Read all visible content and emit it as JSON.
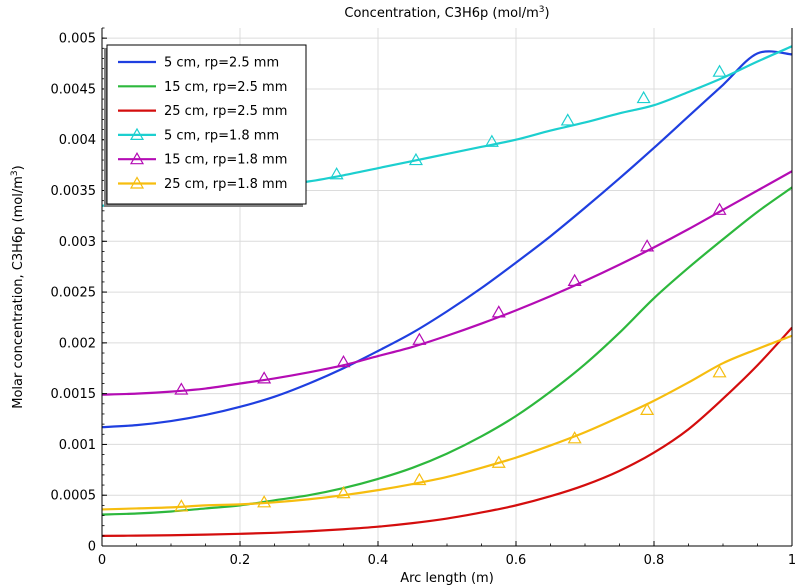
{
  "chart_data": {
    "type": "line",
    "title": "Concentration, C3H6p (mol/m",
    "title_sup": "3",
    "title_end": ")",
    "xlabel": "Arc length (m)",
    "ylabel": "Molar concentration, C3H6p (mol/m",
    "ylabel_sup": "3",
    "ylabel_end": ")",
    "xlim": [
      0,
      1
    ],
    "ylim": [
      0,
      0.0051
    ],
    "x_ticks": [
      0,
      0.2,
      0.4,
      0.6,
      0.8,
      1
    ],
    "x_tick_labels": [
      "0",
      "0.2",
      "0.4",
      "0.6",
      "0.8",
      "1"
    ],
    "y_ticks": [
      0,
      0.0005,
      0.001,
      0.0015,
      0.002,
      0.0025,
      0.003,
      0.0035,
      0.004,
      0.0045,
      0.005
    ],
    "y_tick_labels": [
      "0",
      "0.0005",
      "0.001",
      "0.0015",
      "0.002",
      "0.0025",
      "0.003",
      "0.0035",
      "0.004",
      "0.0045",
      "0.005"
    ],
    "grid": true,
    "legend_position": "top-left",
    "series": [
      {
        "name": "5 cm, rp=2.5 mm",
        "color": "#1f3fe0",
        "marker": "none",
        "x": [
          0,
          0.05,
          0.1,
          0.15,
          0.2,
          0.25,
          0.3,
          0.35,
          0.4,
          0.45,
          0.5,
          0.55,
          0.6,
          0.65,
          0.7,
          0.75,
          0.8,
          0.85,
          0.9,
          0.95,
          1
        ],
        "values": [
          0.00117,
          0.00119,
          0.00123,
          0.00129,
          0.00137,
          0.00147,
          0.0016,
          0.00175,
          0.00192,
          0.0021,
          0.00231,
          0.00254,
          0.00279,
          0.00305,
          0.00333,
          0.00362,
          0.00392,
          0.00423,
          0.00454,
          0.00485,
          0.00484
        ]
      },
      {
        "name": "15 cm, rp=2.5 mm",
        "color": "#2db83d",
        "marker": "none",
        "x": [
          0,
          0.05,
          0.1,
          0.15,
          0.2,
          0.25,
          0.3,
          0.35,
          0.4,
          0.45,
          0.5,
          0.55,
          0.6,
          0.65,
          0.7,
          0.75,
          0.8,
          0.85,
          0.9,
          0.95,
          1
        ],
        "values": [
          0.00031,
          0.00032,
          0.00034,
          0.00037,
          0.0004,
          0.00045,
          0.0005,
          0.00057,
          0.00066,
          0.00077,
          0.00091,
          0.00108,
          0.00128,
          0.00152,
          0.00179,
          0.0021,
          0.00244,
          0.00274,
          0.00302,
          0.00329,
          0.00353
        ]
      },
      {
        "name": "25 cm, rp=2.5 mm",
        "color": "#d40d0d",
        "marker": "none",
        "x": [
          0,
          0.05,
          0.1,
          0.15,
          0.2,
          0.25,
          0.3,
          0.35,
          0.4,
          0.45,
          0.5,
          0.55,
          0.6,
          0.65,
          0.7,
          0.75,
          0.8,
          0.85,
          0.9,
          0.95,
          1
        ],
        "values": [
          0.0001,
          0.000102,
          0.000106,
          0.000112,
          0.00012,
          0.00013,
          0.000145,
          0.000165,
          0.00019,
          0.000225,
          0.00027,
          0.00033,
          0.0004,
          0.00049,
          0.0006,
          0.00074,
          0.00092,
          0.00115,
          0.00145,
          0.00178,
          0.00215
        ]
      },
      {
        "name": "5 cm, rp=1.8 mm",
        "color": "#1ccfcf",
        "marker": "triangle",
        "x": [
          0,
          0.05,
          0.1,
          0.15,
          0.2,
          0.25,
          0.3,
          0.35,
          0.4,
          0.45,
          0.5,
          0.55,
          0.6,
          0.65,
          0.7,
          0.75,
          0.8,
          0.85,
          0.9,
          0.95,
          1
        ],
        "values": [
          0.00335,
          0.00337,
          0.00341,
          0.00346,
          0.00352,
          0.00355,
          0.00359,
          0.00365,
          0.00372,
          0.00379,
          0.00386,
          0.00393,
          0.004,
          0.00409,
          0.00417,
          0.00426,
          0.00434,
          0.00447,
          0.00461,
          0.00477,
          0.00492
        ],
        "markers_x": [
          0.34,
          0.455,
          0.565,
          0.675,
          0.785,
          0.895
        ],
        "markers_y": [
          0.00366,
          0.0038,
          0.00398,
          0.00419,
          0.00441,
          0.00467
        ]
      },
      {
        "name": "15 cm, rp=1.8 mm",
        "color": "#b40cb4",
        "marker": "triangle",
        "x": [
          0,
          0.05,
          0.1,
          0.15,
          0.2,
          0.25,
          0.3,
          0.35,
          0.4,
          0.45,
          0.5,
          0.55,
          0.6,
          0.65,
          0.7,
          0.75,
          0.8,
          0.85,
          0.9,
          0.95,
          1
        ],
        "values": [
          0.00149,
          0.0015,
          0.00152,
          0.00155,
          0.0016,
          0.00165,
          0.00171,
          0.00178,
          0.00187,
          0.00196,
          0.00207,
          0.00219,
          0.00232,
          0.00246,
          0.00261,
          0.00277,
          0.00294,
          0.00312,
          0.00331,
          0.0035,
          0.00369
        ],
        "markers_x": [
          0.115,
          0.235,
          0.35,
          0.46,
          0.575,
          0.685,
          0.79,
          0.895
        ],
        "markers_y": [
          0.00154,
          0.00165,
          0.00181,
          0.00203,
          0.0023,
          0.00261,
          0.00295,
          0.00331
        ]
      },
      {
        "name": "25 cm, rp=1.8 mm",
        "color": "#f6bd0f",
        "marker": "triangle",
        "x": [
          0,
          0.05,
          0.1,
          0.15,
          0.2,
          0.25,
          0.3,
          0.35,
          0.4,
          0.45,
          0.5,
          0.55,
          0.6,
          0.65,
          0.7,
          0.75,
          0.8,
          0.85,
          0.9,
          0.95,
          1
        ],
        "values": [
          0.00036,
          0.00037,
          0.00038,
          0.0004,
          0.00041,
          0.00043,
          0.00046,
          0.0005,
          0.00055,
          0.00061,
          0.00068,
          0.00077,
          0.00087,
          0.00099,
          0.00112,
          0.00127,
          0.00143,
          0.00161,
          0.0018,
          0.00194,
          0.00207
        ],
        "markers_x": [
          0.115,
          0.235,
          0.35,
          0.46,
          0.575,
          0.685,
          0.79,
          0.895
        ],
        "markers_y": [
          0.00039,
          0.00043,
          0.00052,
          0.00065,
          0.00082,
          0.00106,
          0.00134,
          0.00171
        ]
      }
    ]
  }
}
